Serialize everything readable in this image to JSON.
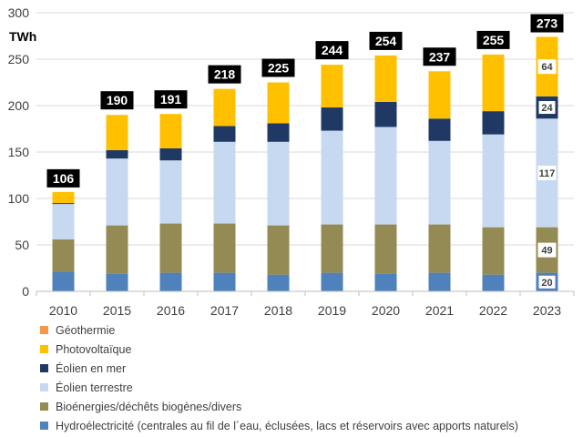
{
  "chart_data": {
    "type": "bar",
    "stacked": true,
    "unit_label": "TWh",
    "ylim": [
      0,
      300
    ],
    "yticks": [
      0,
      50,
      100,
      150,
      200,
      250,
      300
    ],
    "grid": true,
    "categories": [
      "2010",
      "2015",
      "2016",
      "2017",
      "2018",
      "2019",
      "2020",
      "2021",
      "2022",
      "2023"
    ],
    "series": [
      {
        "name": "Hydroélectricité (centrales au fil de l´eau, éclusées, lacs et réservoirs avec apports naturels)",
        "color": "#4f81bd",
        "values": [
          21,
          19,
          20,
          20,
          18,
          20,
          19,
          20,
          18,
          20
        ]
      },
      {
        "name": "Bioénergies/déchêts biogènes/divers",
        "color": "#948a54",
        "values": [
          35,
          52,
          53,
          53,
          53,
          52,
          53,
          52,
          51,
          49
        ]
      },
      {
        "name": "Éolien terrestre",
        "color": "#c6d9f0",
        "values": [
          38,
          72,
          68,
          88,
          90,
          101,
          105,
          90,
          100,
          117
        ]
      },
      {
        "name": "Éolien en mer",
        "color": "#1f3864",
        "values": [
          1,
          9,
          13,
          17,
          20,
          25,
          27,
          24,
          25,
          24
        ]
      },
      {
        "name": "Photovoltaïque",
        "color": "#ffc000",
        "values": [
          12,
          38,
          37,
          40,
          44,
          46,
          50,
          51,
          61,
          64
        ]
      },
      {
        "name": "Géothermie",
        "color": "#f79646",
        "values": [
          0,
          0,
          0,
          0,
          0,
          0,
          0,
          0,
          0,
          0
        ]
      }
    ],
    "totals": [
      106,
      190,
      191,
      218,
      225,
      244,
      254,
      237,
      255,
      273
    ],
    "segment_labels_2023": [
      "20",
      "49",
      "117",
      "24",
      "64"
    ],
    "legend_position": "bottom"
  }
}
